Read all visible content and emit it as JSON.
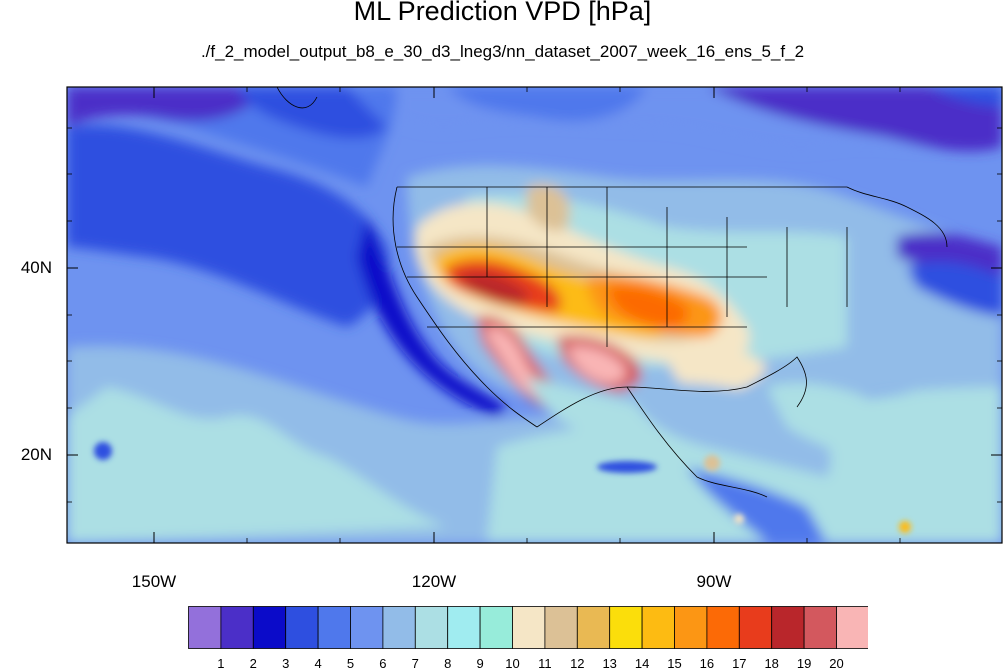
{
  "title": "ML Prediction VPD [hPa]",
  "subtitle": "./f_2_model_output_b8_e_30_d3_lneg3/nn_dataset_2007_week_16_ens_5_f_2",
  "map": {
    "projection": "cylindrical equidistant",
    "lon_range": [
      -160,
      -60
    ],
    "lat_range": [
      10,
      59
    ],
    "lat_ticks": [
      {
        "value": 40,
        "label": "40N"
      },
      {
        "value": 20,
        "label": "20N"
      }
    ],
    "lon_ticks": [
      {
        "value": -150,
        "label": "150W"
      },
      {
        "value": -120,
        "label": "120W"
      },
      {
        "value": -90,
        "label": "90W"
      }
    ],
    "variable": "VPD",
    "units": "hPa"
  },
  "colorbar": {
    "colors": [
      "#9370db",
      "#4b2fc8",
      "#0b0bc9",
      "#2e4fe0",
      "#4f78ec",
      "#6e93f0",
      "#92bce8",
      "#acdfe4",
      "#a0ecf0",
      "#97ecda",
      "#f5e6c6",
      "#dcc196",
      "#e9b953",
      "#fbde0b",
      "#fdbb12",
      "#fc9614",
      "#fc6a06",
      "#e83c1c",
      "#b9262b",
      "#d3585e",
      "#f9b5b5"
    ],
    "labels": [
      "1",
      "2",
      "3",
      "4",
      "5",
      "6",
      "7",
      "8",
      "9",
      "10",
      "11",
      "12",
      "13",
      "14",
      "15",
      "16",
      "17",
      "18",
      "19",
      "20"
    ]
  }
}
